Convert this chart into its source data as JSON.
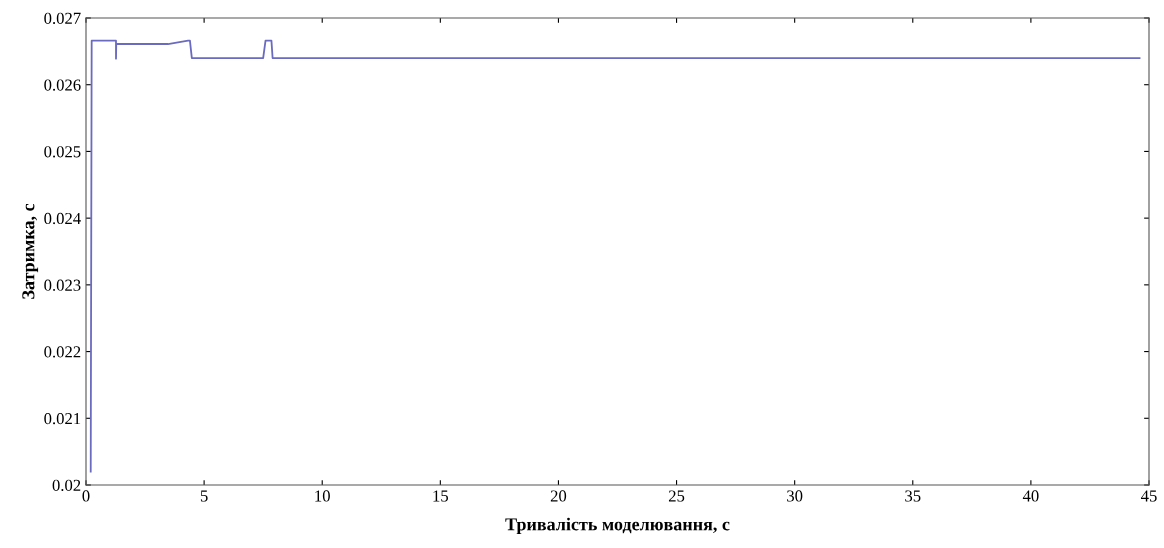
{
  "chart_data": {
    "type": "line",
    "xlabel": "Тривалість моделювання, с",
    "ylabel": "Затримка, с",
    "series": [
      {
        "color": "#6a6ac0",
        "x": [
          0.2,
          0.22,
          0.24,
          0.26,
          1.27,
          1.27,
          1.28,
          1.3,
          3.47,
          4.32,
          4.4,
          4.48,
          7.5,
          7.6,
          7.7,
          7.85,
          7.9,
          44.6
        ],
        "values": [
          0.0202,
          0.0234,
          0.02666,
          0.02666,
          0.02666,
          0.02639,
          0.02661,
          0.02661,
          0.02661,
          0.02666,
          0.02666,
          0.0264,
          0.0264,
          0.02666,
          0.02666,
          0.02666,
          0.0264,
          0.0264
        ]
      }
    ],
    "xlim": [
      0,
      45
    ],
    "xticks": [
      0,
      5,
      10,
      15,
      20,
      25,
      30,
      35,
      40,
      45
    ],
    "ylim": [
      0.02,
      0.027
    ],
    "yticks": [
      0.02,
      0.021,
      0.022,
      0.023,
      0.024,
      0.025,
      0.026,
      0.027
    ],
    "grid": false,
    "legend": false,
    "marker": "none",
    "line_style": "solid"
  }
}
